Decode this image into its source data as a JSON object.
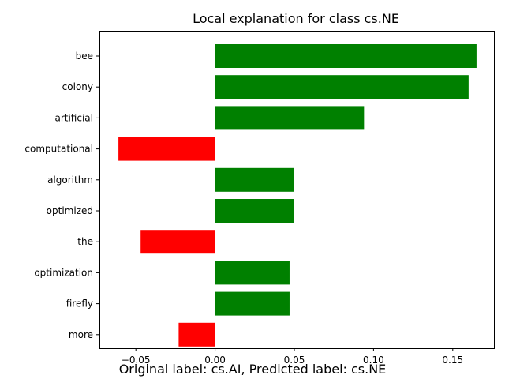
{
  "chart_data": {
    "type": "bar",
    "orientation": "horizontal",
    "title": "Local explanation for class cs.NE",
    "xlabel": "",
    "ylabel": "",
    "categories": [
      "bee",
      "colony",
      "artificial",
      "computational",
      "algorithm",
      "optimized",
      "the",
      "optimization",
      "firefly",
      "more"
    ],
    "values": [
      0.165,
      0.16,
      0.094,
      -0.061,
      0.05,
      0.05,
      -0.047,
      0.047,
      0.047,
      -0.023
    ],
    "xlim": [
      -0.073,
      0.176
    ],
    "xticks": [
      -0.05,
      0.0,
      0.05,
      0.1,
      0.15
    ],
    "xtick_labels": [
      "−0.05",
      "0.00",
      "0.05",
      "0.10",
      "0.15"
    ],
    "colors": {
      "positive": "#008000",
      "negative": "#ff0000"
    },
    "grid": false,
    "legend": "none"
  },
  "caption": "Original label: cs.AI, Predicted label: cs.NE"
}
